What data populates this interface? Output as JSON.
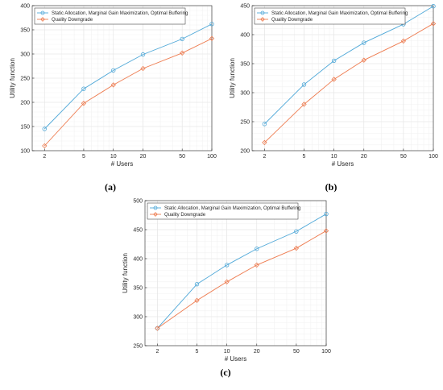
{
  "colors": {
    "series1": "#4fa8d8",
    "series2": "#ee7b4f",
    "grid": "#e3e3e3",
    "axis": "#262626"
  },
  "chart_data": [
    {
      "id": "a",
      "type": "line",
      "panel_label": "(a)",
      "xlabel": "# Users",
      "ylabel": "Utility function",
      "x_scale": "log",
      "xlim": [
        1.5,
        100
      ],
      "ylim": [
        100,
        400
      ],
      "x_ticks": [
        2,
        5,
        10,
        20,
        50,
        100
      ],
      "x_tick_labels": [
        "2",
        "5",
        "10",
        "20",
        "50",
        "100"
      ],
      "y_ticks": [
        100,
        150,
        200,
        250,
        300,
        350,
        400
      ],
      "y_tick_labels": [
        "100",
        "150",
        "200",
        "250",
        "300",
        "350",
        "400"
      ],
      "grid": true,
      "legend_position": "top-left",
      "x": [
        2,
        5,
        10,
        20,
        50,
        100
      ],
      "series": [
        {
          "name": "Static Allocation, Marginal Gain Maximization, Optimal Buffering",
          "marker": "circle",
          "values": [
            145,
            228,
            266,
            299,
            331,
            362
          ]
        },
        {
          "name": "Quality Downgrade",
          "marker": "diamond",
          "values": [
            110,
            198,
            236,
            270,
            302,
            332
          ]
        }
      ]
    },
    {
      "id": "b",
      "type": "line",
      "panel_label": "(b)",
      "xlabel": "# Users",
      "ylabel": "Utility function",
      "x_scale": "log",
      "xlim": [
        1.5,
        100
      ],
      "ylim": [
        200,
        450
      ],
      "x_ticks": [
        2,
        5,
        10,
        20,
        50,
        100
      ],
      "x_tick_labels": [
        "2",
        "5",
        "10",
        "20",
        "50",
        "100"
      ],
      "y_ticks": [
        200,
        250,
        300,
        350,
        400,
        450
      ],
      "y_tick_labels": [
        "200",
        "250",
        "300",
        "350",
        "400",
        "450"
      ],
      "grid": true,
      "legend_position": "top-left",
      "x": [
        2,
        5,
        10,
        20,
        50,
        100
      ],
      "series": [
        {
          "name": "Static Allocation, Marginal Gain Maximization, Optimal Buffering",
          "marker": "circle",
          "values": [
            246,
            314,
            355,
            386,
            418,
            449
          ]
        },
        {
          "name": "Quality Downgrade",
          "marker": "diamond",
          "values": [
            214,
            280,
            323,
            356,
            389,
            419
          ]
        }
      ]
    },
    {
      "id": "c",
      "type": "line",
      "panel_label": "(c)",
      "xlabel": "# Users",
      "ylabel": "Utility function",
      "x_scale": "log",
      "xlim": [
        1.5,
        100
      ],
      "ylim": [
        250,
        500
      ],
      "x_ticks": [
        2,
        5,
        10,
        20,
        50,
        100
      ],
      "x_tick_labels": [
        "2",
        "5",
        "10",
        "20",
        "50",
        "100"
      ],
      "y_ticks": [
        250,
        300,
        350,
        400,
        450,
        500
      ],
      "y_tick_labels": [
        "250",
        "300",
        "350",
        "400",
        "450",
        "500"
      ],
      "grid": true,
      "legend_position": "top-left",
      "x": [
        2,
        5,
        10,
        20,
        50,
        100
      ],
      "series": [
        {
          "name": "Static Allocation, Marginal Gain Maximization, Optimal Buffering",
          "marker": "circle",
          "values": [
            280,
            356,
            389,
            417,
            447,
            477
          ]
        },
        {
          "name": "Quality Downgrade",
          "marker": "diamond",
          "values": [
            280,
            328,
            360,
            389,
            418,
            448
          ]
        }
      ]
    }
  ]
}
